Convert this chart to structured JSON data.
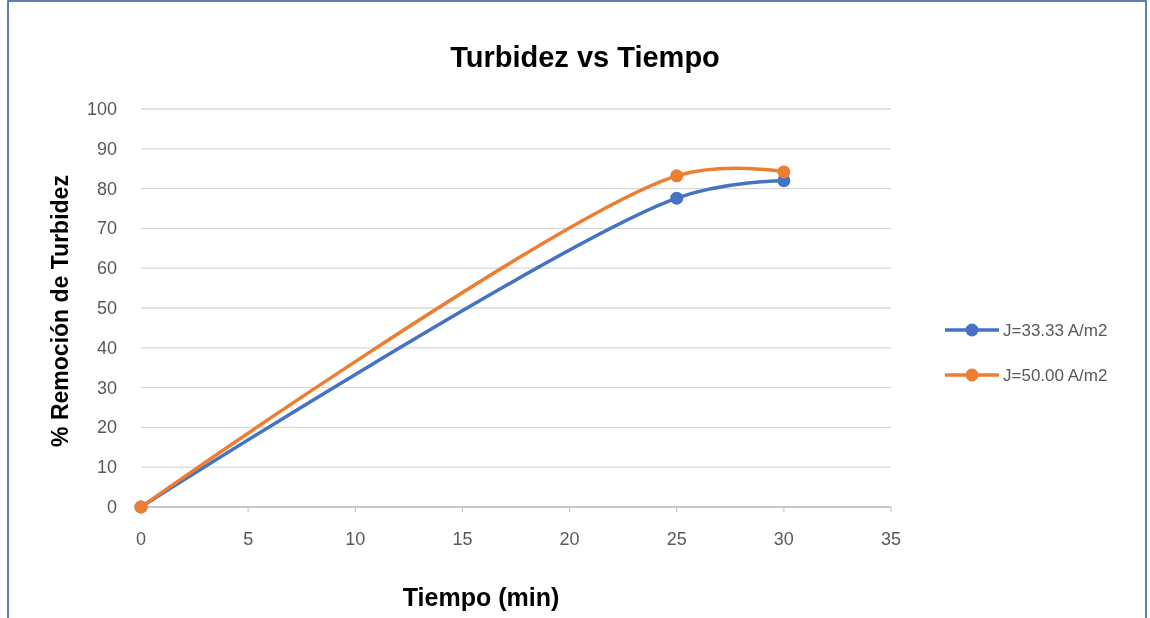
{
  "chart_data": {
    "type": "line",
    "title": "Turbidez vs Tiempo",
    "xlabel": "Tiempo (min)",
    "ylabel": "% Remoción de Turbidez",
    "x": [
      0,
      25,
      30
    ],
    "series": [
      {
        "name": "J=33.33 A/m2",
        "color": "#4472c4",
        "values": [
          0,
          77.6,
          82.0
        ]
      },
      {
        "name": "J=50.00 A/m2",
        "color": "#ed7d31",
        "values": [
          0,
          83.2,
          84.2
        ]
      }
    ],
    "xlim": [
      0,
      35
    ],
    "xticks": [
      0,
      5,
      10,
      15,
      20,
      25,
      30,
      35
    ],
    "ylim": [
      0,
      100
    ],
    "yticks": [
      0,
      10,
      20,
      30,
      40,
      50,
      60,
      70,
      80,
      90,
      100
    ],
    "grid": "y",
    "legend": "right",
    "marker": "circle",
    "line_style": "solid"
  }
}
